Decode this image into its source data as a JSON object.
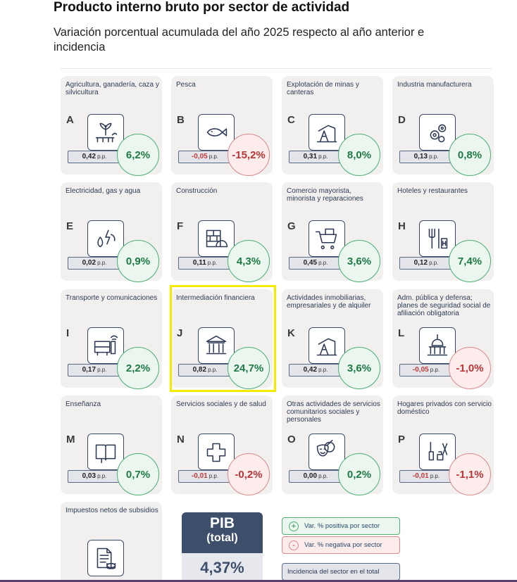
{
  "header": {
    "title": "Producto interno bruto por sector de actividad",
    "subtitle": "Variación porcentual acumulada del año 2025 respecto al año anterior e incidencia"
  },
  "chart_data": {
    "type": "table",
    "title": "Producto interno bruto por sector de actividad",
    "subtitle": "Variación porcentual acumulada del año 2025 respecto al año anterior e incidencia",
    "highlighted": "J",
    "sectors": [
      {
        "letter": "A",
        "name": "Agricultura, ganadería, caza y silvicultura",
        "incidence": "0,42",
        "variation": "6,2%",
        "value": 6.2,
        "icon": "tractor-icon"
      },
      {
        "letter": "B",
        "name": "Pesca",
        "incidence": "-0,05",
        "variation": "-15,2%",
        "value": -15.2,
        "icon": "fish-icon"
      },
      {
        "letter": "C",
        "name": "Explotación de minas y canteras",
        "incidence": "0,31",
        "variation": "8,0%",
        "value": 8.0,
        "icon": "pumpjack-icon"
      },
      {
        "letter": "D",
        "name": "Industria manufacturera",
        "incidence": "0,13",
        "variation": "0,8%",
        "value": 0.8,
        "icon": "gears-icon"
      },
      {
        "letter": "E",
        "name": "Electricidad, gas y agua",
        "incidence": "0,02",
        "variation": "0,9%",
        "value": 0.9,
        "icon": "utilities-icon"
      },
      {
        "letter": "F",
        "name": "Construcción",
        "incidence": "0,11",
        "variation": "4,3%",
        "value": 4.3,
        "icon": "bricks-helmet-icon"
      },
      {
        "letter": "G",
        "name": "Comercio mayorista, minorista y reparaciones",
        "incidence": "0,45",
        "variation": "3,6%",
        "value": 3.6,
        "icon": "shopping-cart-icon"
      },
      {
        "letter": "H",
        "name": "Hoteles y restaurantes",
        "incidence": "0,12",
        "variation": "7,4%",
        "value": 7.4,
        "icon": "restaurant-hotel-icon"
      },
      {
        "letter": "I",
        "name": "Transporte y comunicaciones",
        "incidence": "0,17",
        "variation": "2,2%",
        "value": 2.2,
        "icon": "bus-phone-icon"
      },
      {
        "letter": "J",
        "name": "Intermediación financiera",
        "incidence": "0,82",
        "variation": "24,7%",
        "value": 24.7,
        "icon": "bank-icon"
      },
      {
        "letter": "K",
        "name": "Actividades inmobiliarias, empresariales y de alquiler",
        "incidence": "0,42",
        "variation": "3,6%",
        "value": 3.6,
        "icon": "pumpjack-icon"
      },
      {
        "letter": "L",
        "name": "Adm. pública y defensa; planes de seguridad social de afiliación obligatoria",
        "incidence": "-0,05",
        "variation": "-1,0%",
        "value": -1.0,
        "icon": "capitol-icon"
      },
      {
        "letter": "M",
        "name": "Enseñanza",
        "incidence": "0,03",
        "variation": "0,7%",
        "value": 0.7,
        "icon": "book-icon"
      },
      {
        "letter": "N",
        "name": "Servicios sociales y de salud",
        "incidence": "-0,01",
        "variation": "-0,2%",
        "value": -0.2,
        "icon": "health-cross-icon"
      },
      {
        "letter": "O",
        "name": "Otras actividades de servicios comunitarios sociales y personales",
        "incidence": "0,00",
        "variation": "0,2%",
        "value": 0.2,
        "icon": "theater-masks-icon"
      },
      {
        "letter": "P",
        "name": "Hogares privados con servicio doméstico",
        "incidence": "-0,01",
        "variation": "-1,1%",
        "value": -1.1,
        "icon": "cleaning-icon"
      },
      {
        "letter": "",
        "name": "Impuestos netos de subsidios",
        "incidence": "",
        "variation": "",
        "value": null,
        "icon": "tax-document-icon"
      }
    ],
    "unit": "p.p.",
    "total": {
      "label_line1": "PIB",
      "label_line2": "(total)",
      "value": "4,37%"
    },
    "legend": {
      "positive": "Var. % positiva por sector",
      "negative": "Var. % negativa por sector",
      "incidence": "Incidencia del sector en el total",
      "plus": "+",
      "minus": "-"
    }
  },
  "colors": {
    "positive": "#1f7a45",
    "negative": "#b93535",
    "navy": "#3d4f6b",
    "highlight": "#f5ea00"
  }
}
